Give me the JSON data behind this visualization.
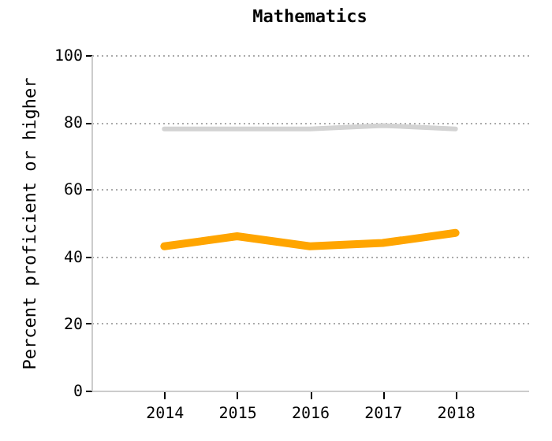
{
  "chart_data": {
    "type": "line",
    "title": "Mathematics",
    "ylabel": "Percent proficient or higher",
    "categories": [
      "2014",
      "2015",
      "2016",
      "2017",
      "2018"
    ],
    "series": [
      {
        "color": "#d3d3d3",
        "values": [
          78,
          78,
          78,
          79,
          78
        ]
      },
      {
        "color": "#ffa500",
        "values": [
          43,
          46,
          43,
          44,
          47
        ]
      }
    ],
    "ylim": [
      0,
      100
    ],
    "yticks": [
      0,
      20,
      40,
      60,
      80,
      100
    ],
    "grid": "y",
    "marker": "none"
  }
}
